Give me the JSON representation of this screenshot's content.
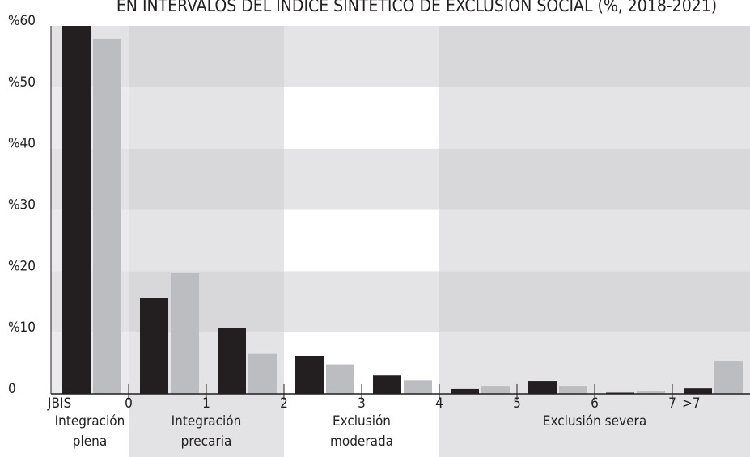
{
  "chart_data": {
    "type": "bar",
    "title": "EN INTERVALOS DEL ÍNDICE SINTÉTICO DE EXCLUSIÓN SOCIAL (%, 2018-2021)",
    "categories": [
      "JBIS",
      null,
      null,
      null,
      null,
      null,
      null,
      null,
      ">7"
    ],
    "bin_edges": [
      0,
      1,
      2,
      3,
      4,
      5,
      6,
      7
    ],
    "series": [
      {
        "color": "#231f20",
        "values": [
          60,
          15.6,
          10.8,
          6.2,
          3.0,
          0.8,
          2.1,
          0.2,
          0.9
        ]
      },
      {
        "color": "#bcbdc0",
        "values": [
          57.9,
          19.7,
          6.5,
          4.8,
          2.2,
          1.3,
          1.3,
          0.5,
          5.4
        ]
      }
    ],
    "zones": [
      [
        "Integración",
        "plena"
      ],
      [
        "Integración",
        "precaria"
      ],
      [
        "Exclusión",
        "moderada"
      ],
      [
        "Exclusión severa"
      ]
    ],
    "ylim": [
      0,
      60
    ],
    "yticks": [
      0,
      {
        "value": 10,
        "label": "%10"
      },
      {
        "value": 20,
        "label": "%20"
      },
      {
        "value": 30,
        "label": "%30"
      },
      {
        "value": 40,
        "label": "%40"
      },
      {
        "value": 50,
        "label": "%50"
      },
      {
        "value": 60,
        "label": "%60"
      }
    ],
    "grid": true
  }
}
